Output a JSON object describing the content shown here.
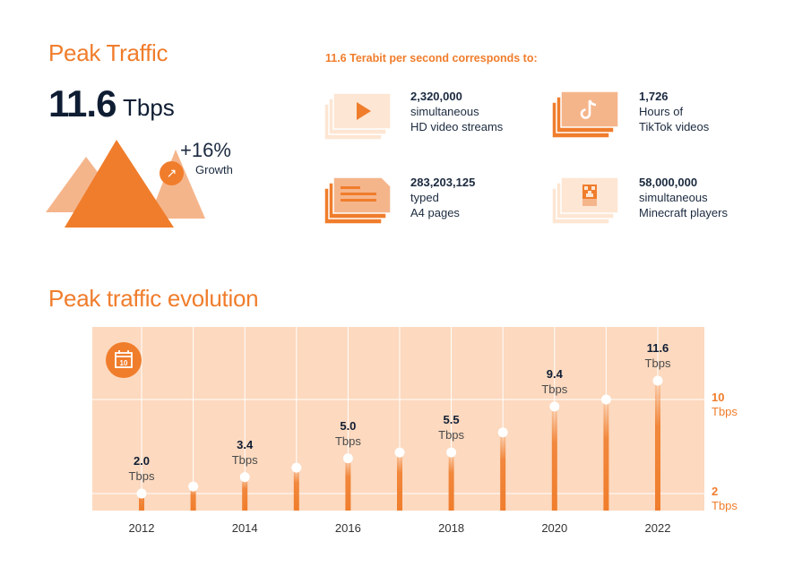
{
  "header": {
    "title": "Peak Traffic",
    "value": "11.6",
    "unit": "Tbps",
    "growth_pct": "+16%",
    "growth_label": "Growth",
    "growth_icon": "arrow-up-right-icon"
  },
  "correspondence": {
    "title": "11.6  Terabit per second corresponds to:",
    "items": [
      {
        "value": "2,320,000",
        "line1": "simultaneous",
        "line2": "HD video streams",
        "icon": "video-play-icon"
      },
      {
        "value": "1,726",
        "line1": "Hours of",
        "line2": "TikTok videos",
        "icon": "tiktok-icon"
      },
      {
        "value": "283,203,125",
        "line1": "typed",
        "line2": "A4 pages",
        "icon": "document-page-icon"
      },
      {
        "value": "58,000,000",
        "line1": "simultaneous",
        "line2": "Minecraft players",
        "icon": "minecraft-creeper-icon"
      }
    ]
  },
  "colors": {
    "accent": "#f07d2c",
    "light": "#fcd9bf",
    "lighter": "#fde6d3",
    "text": "#0f1d33"
  },
  "chart_data": {
    "type": "line",
    "title": "Peak traffic evolution",
    "x": [
      2012,
      2013,
      2014,
      2015,
      2016,
      2017,
      2018,
      2019,
      2020,
      2021,
      2022
    ],
    "values": [
      2.0,
      2.6,
      3.4,
      4.2,
      5.0,
      5.5,
      5.5,
      7.2,
      9.4,
      10.0,
      11.6
    ],
    "point_labels": [
      {
        "x": 2012,
        "value": "2.0",
        "unit": "Tbps"
      },
      {
        "x": 2014,
        "value": "3.4",
        "unit": "Tbps"
      },
      {
        "x": 2016,
        "value": "5.0",
        "unit": "Tbps"
      },
      {
        "x": 2018,
        "value": "5.5",
        "unit": "Tbps"
      },
      {
        "x": 2020,
        "value": "9.4",
        "unit": "Tbps"
      },
      {
        "x": 2022,
        "value": "11.6",
        "unit": "Tbps"
      }
    ],
    "x_tick_labels": [
      "2012",
      "2014",
      "2016",
      "2018",
      "2020",
      "2022"
    ],
    "y_ticks": [
      {
        "value": "10",
        "unit": "Tbps"
      },
      {
        "value": "2",
        "unit": "Tbps"
      }
    ],
    "ylim": [
      0,
      12
    ],
    "grid": true,
    "icon": "calendar-10-icon"
  }
}
